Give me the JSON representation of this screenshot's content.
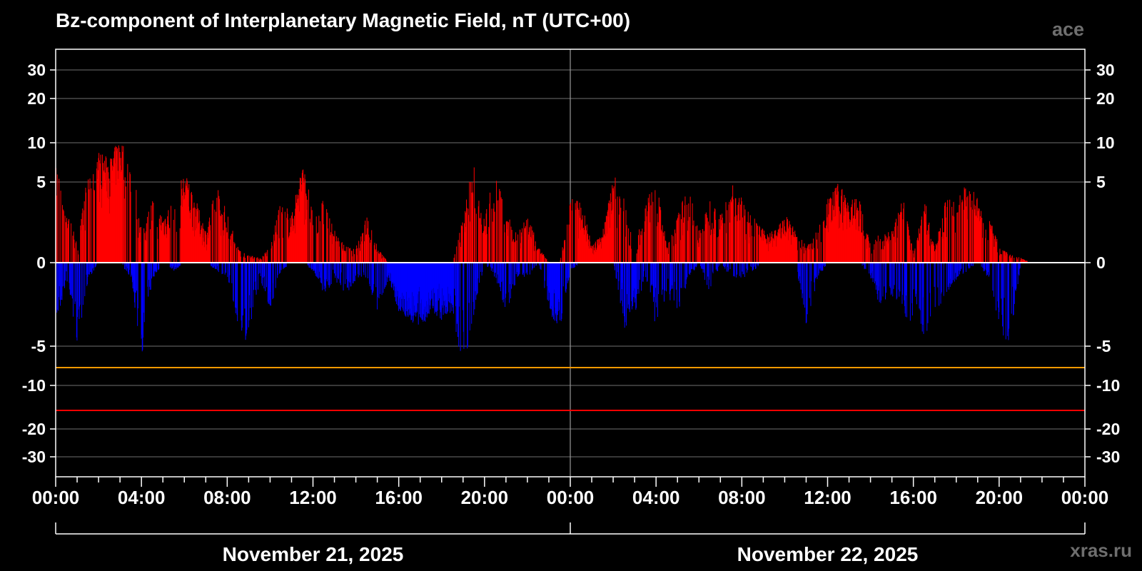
{
  "chart_data": {
    "type": "bar",
    "title": "Bz-component of Interplanetary Magnetic Field, nT (UTC+00)",
    "source_tag": "ace",
    "watermark": "xras.ru",
    "y_scale": "nonlinear (compressed beyond ±5 / ±10)",
    "ylim": [
      -30,
      30
    ],
    "y_ticks": [
      30,
      20,
      10,
      5,
      0,
      -5,
      -10,
      -20,
      -30
    ],
    "x_tick_labels": [
      "00:00",
      "04:00",
      "08:00",
      "12:00",
      "16:00",
      "20:00",
      "00:00",
      "04:00",
      "08:00",
      "12:00",
      "16:00",
      "20:00",
      "00:00"
    ],
    "date_labels": [
      "November 21, 2025",
      "November 22, 2025"
    ],
    "x_range_hours": [
      0,
      48
    ],
    "data_end_hours": 46,
    "grid": true,
    "reference_lines": [
      {
        "value": -8,
        "color": "#ff9900"
      },
      {
        "value": -15,
        "color": "#ff0000"
      }
    ],
    "colors": {
      "positive": "#ff0000",
      "negative": "#0000ff",
      "zero_line": "#ffffff",
      "grid": "#5a5a5a"
    },
    "x_hours": [
      0,
      0.5,
      1,
      1.5,
      2,
      2.5,
      3,
      3.5,
      4,
      4.5,
      5,
      5.5,
      6,
      6.5,
      7,
      7.5,
      8,
      8.5,
      9,
      9.5,
      10,
      10.5,
      11,
      11.5,
      12,
      12.5,
      13,
      13.5,
      14,
      14.5,
      15,
      15.5,
      16,
      16.5,
      17,
      17.5,
      18,
      18.5,
      19,
      19.5,
      20,
      20.5,
      21,
      21.5,
      22,
      22.5,
      23,
      23.5,
      24,
      24.5,
      25,
      25.5,
      26,
      26.5,
      27,
      27.5,
      28,
      28.5,
      29,
      29.5,
      30,
      30.5,
      31,
      31.5,
      32,
      32.5,
      33,
      33.5,
      34,
      34.5,
      35,
      35.5,
      36,
      36.5,
      37,
      37.5,
      38,
      38.5,
      39,
      39.5,
      40,
      40.5,
      41,
      41.5,
      42,
      42.5,
      43,
      43.5,
      44,
      44.5,
      45,
      45.5,
      46
    ],
    "bz_max": [
      7,
      4,
      1,
      6,
      9,
      8,
      11,
      7,
      2,
      4,
      3,
      4,
      6,
      4,
      2,
      5,
      3,
      1,
      0.5,
      0.3,
      1,
      4,
      3,
      7,
      3,
      4,
      2,
      1,
      1,
      3,
      1,
      0,
      0,
      0,
      0,
      0,
      0,
      0,
      3,
      7,
      3,
      6,
      3,
      2,
      3,
      1,
      0,
      0,
      4,
      4,
      1,
      2,
      6,
      4,
      1,
      4,
      5,
      1,
      3,
      5,
      2,
      4,
      3,
      5,
      4,
      3,
      2,
      2,
      3,
      2,
      1,
      2,
      4,
      5,
      4,
      4,
      1,
      2,
      2,
      4,
      0.5,
      4,
      1,
      4,
      4,
      5,
      4,
      3,
      1,
      0.5,
      0.3,
      0,
      0
    ],
    "bz_min": [
      -4,
      -1,
      -5,
      -1,
      0,
      0,
      0,
      -1,
      -6,
      -1,
      0,
      -0.5,
      0,
      0,
      0,
      -0.5,
      -1,
      -4,
      -5,
      -1,
      -3,
      -0.5,
      0,
      0,
      -0.5,
      -2,
      -1,
      -2,
      -1,
      -1,
      -3,
      -1,
      -3,
      -3.5,
      -4,
      -3,
      -3.5,
      -3,
      -7,
      -3,
      0,
      -1,
      -3,
      -1,
      -1,
      0,
      -3,
      -4,
      -0.5,
      0,
      0,
      0,
      0,
      -4,
      -3,
      -1,
      -4,
      -2,
      -3,
      -1,
      0,
      -2,
      0,
      -1,
      -1,
      -0.5,
      0,
      0,
      0,
      0,
      -4,
      -1,
      0,
      0,
      0,
      0,
      -1,
      -3,
      -2,
      -3,
      -4,
      -5,
      -3,
      -2,
      -1,
      -0.5,
      0,
      -1,
      -4,
      -5,
      0,
      0,
      0
    ]
  }
}
